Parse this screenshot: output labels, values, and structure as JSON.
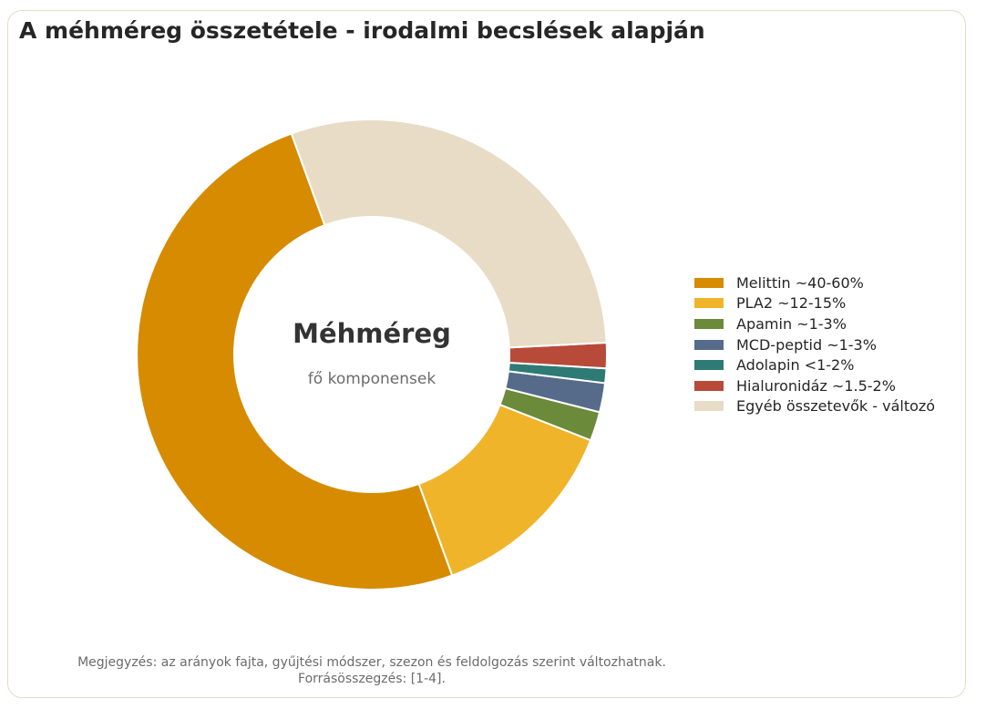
{
  "title": "A méhméreg összetétele - irodalmi becslések alapján",
  "center_title": "Méhméreg",
  "center_subtitle": "fő komponensek",
  "footnote_line1": "Megjegyzés: az arányok fajta, gyűjtési módszer, szezon és feldolgozás szerint változhatnak.",
  "footnote_line2": "Forrásösszegzés: [1-4].",
  "chart_data": {
    "type": "pie",
    "variant": "donut",
    "title": "A méhméreg összetétele - irodalmi becslések alapján",
    "legend_position": "right",
    "slices": [
      {
        "label": "Melittin ~40-60%",
        "value": 50,
        "color": "#d68b00"
      },
      {
        "label": "PLA2 ~12-15%",
        "value": 13.5,
        "color": "#efb42a"
      },
      {
        "label": "Apamin ~1-3%",
        "value": 2,
        "color": "#6b8a3a"
      },
      {
        "label": "MCD-peptid ~1-3%",
        "value": 2,
        "color": "#566b8a"
      },
      {
        "label": "Adolapin <1-2%",
        "value": 1,
        "color": "#2e7a74"
      },
      {
        "label": "Hialuronidáz ~1.5-2%",
        "value": 1.75,
        "color": "#b84a3a"
      },
      {
        "label": "Egyéb összetevők - változó",
        "value": 29.75,
        "color": "#e8dcc7"
      }
    ]
  }
}
